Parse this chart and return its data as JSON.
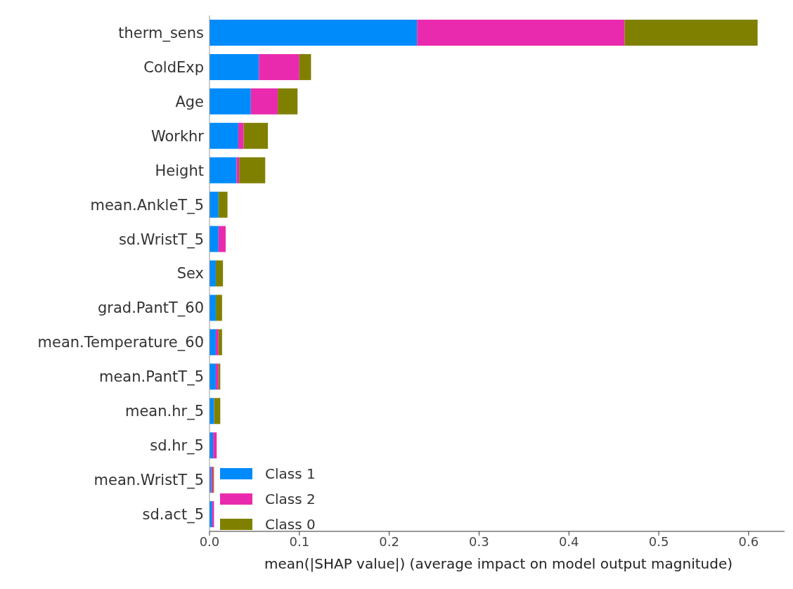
{
  "chart_data": {
    "type": "bar",
    "orientation": "horizontal",
    "stacked": true,
    "categories": [
      "therm_sens",
      "ColdExp",
      "Age",
      "Workhr",
      "Height",
      "mean.AnkleT_5",
      "sd.WristT_5",
      "Sex",
      "grad.PantT_60",
      "mean.Temperature_60",
      "mean.PantT_5",
      "mean.hr_5",
      "sd.hr_5",
      "mean.WristT_5",
      "sd.act_5"
    ],
    "series": [
      {
        "name": "Class 1",
        "color": "#008bfb",
        "values": [
          0.231,
          0.055,
          0.046,
          0.032,
          0.03,
          0.01,
          0.01,
          0.007,
          0.007,
          0.007,
          0.007,
          0.005,
          0.004,
          0.002,
          0.003
        ]
      },
      {
        "name": "Class 2",
        "color": "#e92aae",
        "values": [
          0.231,
          0.045,
          0.03,
          0.006,
          0.003,
          0,
          0.008,
          0,
          0,
          0.003,
          0.003,
          0,
          0.004,
          0.002,
          0.002
        ]
      },
      {
        "name": "Class 0",
        "color": "#808000",
        "values": [
          0.148,
          0.013,
          0.022,
          0.027,
          0.029,
          0.01,
          0,
          0.008,
          0.007,
          0.004,
          0.002,
          0.007,
          0,
          0.001,
          0
        ]
      }
    ],
    "xlabel": "mean(|SHAP value|) (average impact on model output magnitude)",
    "xlim": [
      0,
      0.64
    ],
    "xticks": [
      {
        "value": 0,
        "label": "0.0"
      },
      0.1,
      0.2,
      0.3,
      0.4,
      0.5,
      0.6
    ],
    "grid": false,
    "legend": "bottom left"
  }
}
